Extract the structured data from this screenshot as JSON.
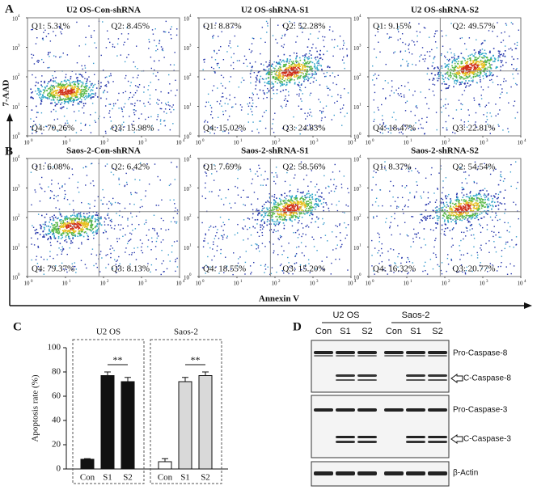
{
  "panel_labels": [
    "A",
    "B",
    "C",
    "D"
  ],
  "flow": {
    "y_label": "7-AAD",
    "x_label": "Annexin V",
    "tick_base": "10",
    "tick_exponents": [
      0,
      1,
      2,
      3,
      4
    ],
    "plots": [
      {
        "title": "U2 OS-Con-shRNA",
        "q1": "Q1: 5.31%",
        "q2": "Q2: 8.45%",
        "q3": "Q3: 15.98%",
        "q4": "Q4: 70.26%"
      },
      {
        "title": "U2 OS-shRNA-S1",
        "q1": "Q1: 8.87%",
        "q2": "Q2: 52.28%",
        "q3": "Q3: 24.83%",
        "q4": "Q4: 15.02%"
      },
      {
        "title": "U2 OS-shRNA-S2",
        "q1": "Q1: 9.15%",
        "q2": "Q2: 49.57%",
        "q3": "Q3: 22.81%",
        "q4": "Q4: 18.47%"
      },
      {
        "title": "Saos-2-Con-shRNA",
        "q1": "Q1: 6.08%",
        "q2": "Q2: 6.42%",
        "q3": "Q3: 8.13%",
        "q4": "Q4: 79.37%"
      },
      {
        "title": "Saos-2-shRNA-S1",
        "q1": "Q1: 7.69%",
        "q2": "Q2: 58.56%",
        "q3": "Q3: 15.20%",
        "q4": "Q4: 18.55%"
      },
      {
        "title": "Saos-2-shRNA-S2",
        "q1": "Q1: 8.37%",
        "q2": "Q2: 54.54%",
        "q3": "Q3: 20.77%",
        "q4": "Q4: 16.32%"
      }
    ]
  },
  "chart_data": {
    "type": "bar",
    "ylabel": "Apoptosis rate (%)",
    "ylim": [
      0,
      100
    ],
    "yticks": [
      0,
      20,
      40,
      60,
      80,
      100
    ],
    "groups": [
      {
        "name": "U2 OS",
        "categories": [
          "Con",
          "S1",
          "S2"
        ],
        "values": [
          8,
          77,
          72
        ],
        "errors": [
          0.5,
          3,
          3.5
        ],
        "colors": [
          "#111111",
          "#111111",
          "#111111"
        ],
        "annotation": "**"
      },
      {
        "name": "Saos-2",
        "categories": [
          "Con",
          "S1",
          "S2"
        ],
        "values": [
          6,
          72,
          77
        ],
        "errors": [
          2.5,
          3.5,
          3
        ],
        "colors": [
          "#ffffff",
          "#d9d9d9",
          "#d9d9d9"
        ],
        "annotation": "**"
      }
    ]
  },
  "blot": {
    "groups": [
      "U2 OS",
      "Saos-2"
    ],
    "lanes": [
      "Con",
      "S1",
      "S2",
      "Con",
      "S1",
      "S2"
    ],
    "bands": [
      "Pro-Caspase-8",
      "C-Caspase-8",
      "Pro-Caspase-3",
      "C-Caspase-3",
      "β-Actin"
    ]
  }
}
